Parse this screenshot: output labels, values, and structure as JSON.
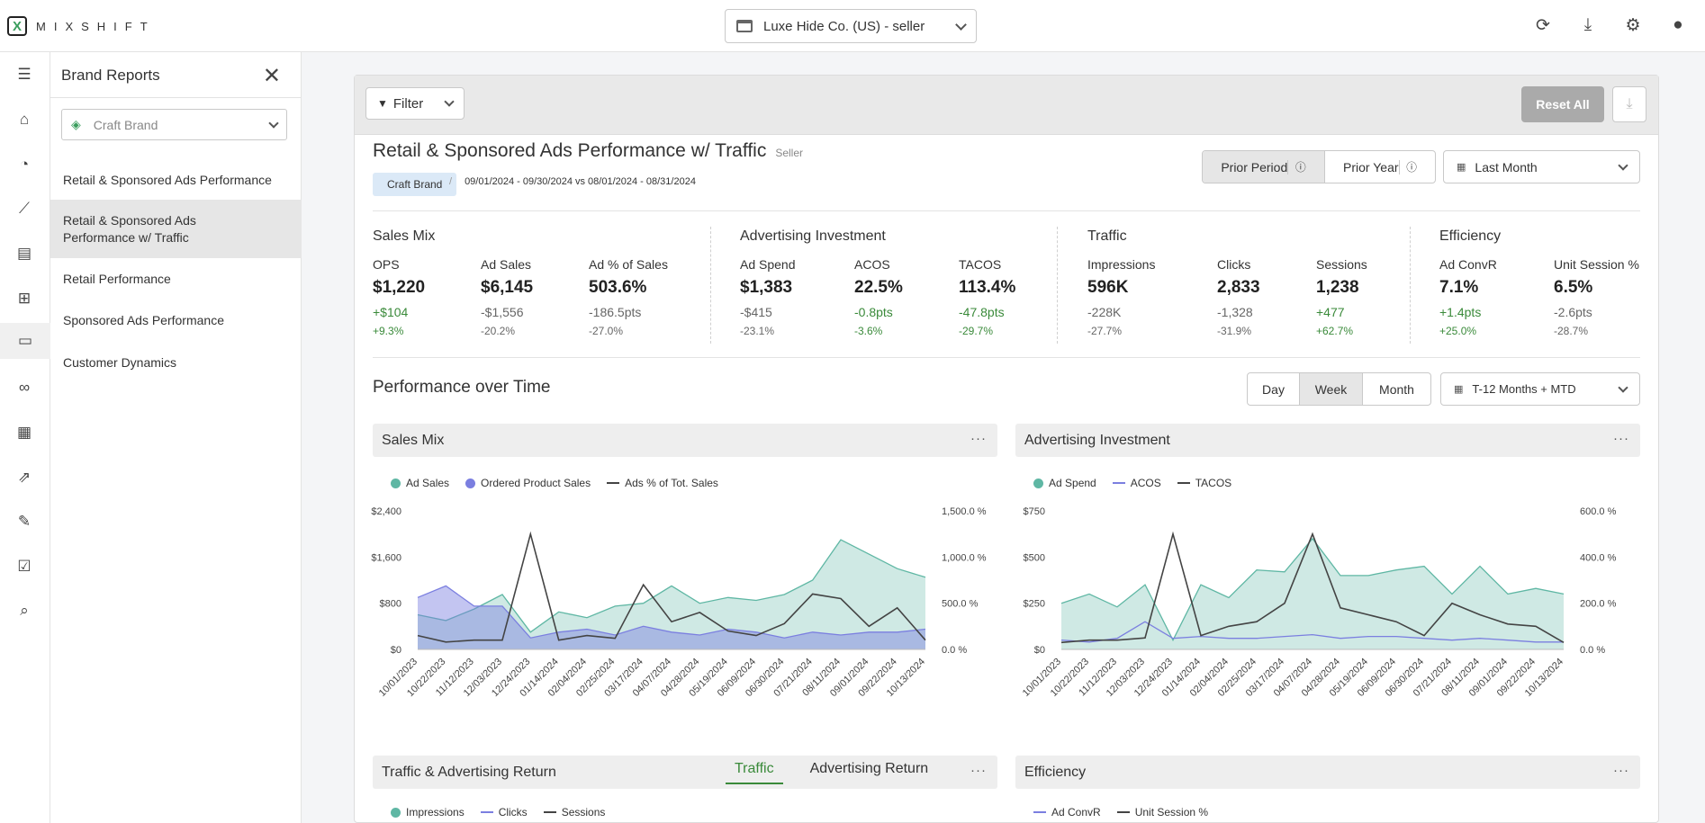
{
  "app": {
    "logo_letter": "X",
    "logo_text": "MIXSHIFT",
    "account": "Luxe Hide Co. (US) - seller"
  },
  "topbar_icons": [
    "refresh-icon",
    "download-icon",
    "gear-icon",
    "user-icon"
  ],
  "sidepanel": {
    "title": "Brand Reports",
    "brand_placeholder": "Craft Brand",
    "items": [
      {
        "label": "Retail & Sponsored Ads Performance"
      },
      {
        "label": "Retail & Sponsored Ads Performance w/ Traffic"
      },
      {
        "label": "Retail Performance"
      },
      {
        "label": "Sponsored Ads Performance"
      },
      {
        "label": "Customer Dynamics"
      }
    ]
  },
  "toolbar": {
    "filter": "Filter",
    "reset": "Reset All"
  },
  "report": {
    "title": "Retail & Sponsored Ads Performance w/ Traffic",
    "badge": "Seller",
    "brand_chip": "Craft Brand",
    "separator": "/",
    "date_range": "09/01/2024 - 09/30/2024 vs 08/01/2024 - 08/31/2024",
    "prior_period": "Prior Period",
    "prior_year": "Prior Year",
    "period": "Last Month"
  },
  "kpis": {
    "sales_mix": {
      "title": "Sales Mix",
      "items": [
        {
          "label": "OPS",
          "value": "$1,220",
          "delta": "+$104",
          "pct": "+9.3%",
          "dpos": true,
          "ppos": true
        },
        {
          "label": "Ad Sales",
          "value": "$6,145",
          "delta": "-$1,556",
          "pct": "-20.2%",
          "dpos": false,
          "ppos": false
        },
        {
          "label": "Ad % of Sales",
          "value": "503.6%",
          "delta": "-186.5pts",
          "pct": "-27.0%",
          "dpos": false,
          "ppos": false
        }
      ]
    },
    "ad_invest": {
      "title": "Advertising Investment",
      "items": [
        {
          "label": "Ad Spend",
          "value": "$1,383",
          "delta": "-$415",
          "pct": "-23.1%",
          "dpos": false,
          "ppos": false
        },
        {
          "label": "ACOS",
          "value": "22.5%",
          "delta": "-0.8pts",
          "pct": "-3.6%",
          "dpos": true,
          "ppos": true
        },
        {
          "label": "TACOS",
          "value": "113.4%",
          "delta": "-47.8pts",
          "pct": "-29.7%",
          "dpos": true,
          "ppos": true
        }
      ]
    },
    "traffic": {
      "title": "Traffic",
      "items": [
        {
          "label": "Impressions",
          "value": "596K",
          "delta": "-228K",
          "pct": "-27.7%",
          "dpos": false,
          "ppos": false
        },
        {
          "label": "Clicks",
          "value": "2,833",
          "delta": "-1,328",
          "pct": "-31.9%",
          "dpos": false,
          "ppos": false
        },
        {
          "label": "Sessions",
          "value": "1,238",
          "delta": "+477",
          "pct": "+62.7%",
          "dpos": true,
          "ppos": true
        }
      ]
    },
    "efficiency": {
      "title": "Efficiency",
      "items": [
        {
          "label": "Ad ConvR",
          "value": "7.1%",
          "delta": "+1.4pts",
          "pct": "+25.0%",
          "dpos": true,
          "ppos": true
        },
        {
          "label": "Unit Session %",
          "value": "6.5%",
          "delta": "-2.6pts",
          "pct": "-28.7%",
          "dpos": false,
          "ppos": false
        }
      ]
    }
  },
  "pot": {
    "title": "Performance over Time",
    "day": "Day",
    "week": "Week",
    "month": "Month",
    "range": "T-12 Months + MTD"
  },
  "panels": {
    "sales_mix": "Sales Mix",
    "ad_invest": "Advertising Investment",
    "traffic_return": "Traffic & Advertising Return",
    "tab_traffic": "Traffic",
    "tab_return": "Advertising Return",
    "efficiency": "Efficiency",
    "more": "···"
  },
  "colors": {
    "teal": "#5fb7a4",
    "purple": "#7b7fe0",
    "dark": "#444444",
    "green": "#3a8a3a"
  },
  "legends": {
    "sales_mix": [
      {
        "label": "Ad Sales",
        "type": "dot",
        "color": "#5fb7a4"
      },
      {
        "label": "Ordered Product Sales",
        "type": "dot",
        "color": "#7b7fe0"
      },
      {
        "label": "Ads % of Tot. Sales",
        "type": "line",
        "color": "#444444"
      }
    ],
    "ad_invest": [
      {
        "label": "Ad Spend",
        "type": "dot",
        "color": "#5fb7a4"
      },
      {
        "label": "ACOS",
        "type": "line",
        "color": "#7b7fe0"
      },
      {
        "label": "TACOS",
        "type": "line",
        "color": "#444444"
      }
    ],
    "traffic": [
      {
        "label": "Impressions",
        "type": "dot",
        "color": "#5fb7a4"
      },
      {
        "label": "Clicks",
        "type": "line",
        "color": "#7b7fe0"
      },
      {
        "label": "Sessions",
        "type": "line",
        "color": "#444444"
      }
    ],
    "efficiency": [
      {
        "label": "Ad ConvR",
        "type": "line",
        "color": "#7b7fe0"
      },
      {
        "label": "Unit Session %",
        "type": "line",
        "color": "#444444"
      }
    ]
  },
  "chart_data": [
    {
      "type": "area",
      "title": "Sales Mix",
      "categories": [
        "10/01/2023",
        "10/22/2023",
        "11/12/2023",
        "12/03/2023",
        "12/24/2023",
        "01/14/2024",
        "02/04/2024",
        "02/25/2024",
        "03/17/2024",
        "04/07/2024",
        "04/28/2024",
        "05/19/2024",
        "06/09/2024",
        "06/30/2024",
        "07/21/2024",
        "08/11/2024",
        "09/01/2024",
        "09/22/2024",
        "10/13/2024"
      ],
      "yleft": {
        "ticks": [
          "$0",
          "$800",
          "$1,600",
          "$2,400"
        ],
        "max": 2400
      },
      "yright": {
        "ticks": [
          "0.0 %",
          "500.0 %",
          "1,000.0 %",
          "1,500.0 %"
        ],
        "max": 1500
      },
      "series": [
        {
          "name": "Ad Sales",
          "axis": "left",
          "values": [
            600,
            500,
            700,
            950,
            300,
            650,
            550,
            750,
            800,
            1100,
            800,
            900,
            850,
            950,
            1200,
            1900,
            1650,
            1400,
            1250
          ]
        },
        {
          "name": "Ordered Product Sales",
          "axis": "left",
          "values": [
            900,
            1100,
            750,
            750,
            200,
            300,
            350,
            250,
            400,
            300,
            250,
            350,
            300,
            200,
            300,
            250,
            300,
            300,
            350
          ]
        },
        {
          "name": "Ads % of Tot. Sales",
          "axis": "right",
          "values": [
            150,
            80,
            100,
            100,
            1250,
            100,
            150,
            120,
            700,
            300,
            400,
            200,
            150,
            280,
            600,
            550,
            250,
            450,
            100
          ]
        }
      ]
    },
    {
      "type": "area",
      "title": "Advertising Investment",
      "categories": [
        "10/01/2023",
        "10/22/2023",
        "11/12/2023",
        "12/03/2023",
        "12/24/2023",
        "01/14/2024",
        "02/04/2024",
        "02/25/2024",
        "03/17/2024",
        "04/07/2024",
        "04/28/2024",
        "05/19/2024",
        "06/09/2024",
        "06/30/2024",
        "07/21/2024",
        "08/11/2024",
        "09/01/2024",
        "09/22/2024",
        "10/13/2024"
      ],
      "yleft": {
        "ticks": [
          "$0",
          "$250",
          "$500",
          "$750"
        ],
        "max": 750
      },
      "yright": {
        "ticks": [
          "0.0 %",
          "200.0 %",
          "400.0 %",
          "600.0 %"
        ],
        "max": 600
      },
      "series": [
        {
          "name": "Ad Spend",
          "axis": "left",
          "values": [
            250,
            300,
            230,
            350,
            50,
            350,
            280,
            430,
            420,
            600,
            400,
            400,
            430,
            450,
            300,
            450,
            300,
            330,
            300
          ]
        },
        {
          "name": "ACOS",
          "axis": "left",
          "values": [
            50,
            40,
            60,
            150,
            60,
            70,
            60,
            60,
            70,
            80,
            60,
            70,
            70,
            60,
            50,
            60,
            50,
            40,
            40
          ]
        },
        {
          "name": "TACOS",
          "axis": "right",
          "values": [
            30,
            40,
            40,
            50,
            500,
            60,
            100,
            120,
            200,
            500,
            180,
            150,
            120,
            60,
            200,
            150,
            110,
            100,
            30
          ]
        }
      ]
    }
  ]
}
